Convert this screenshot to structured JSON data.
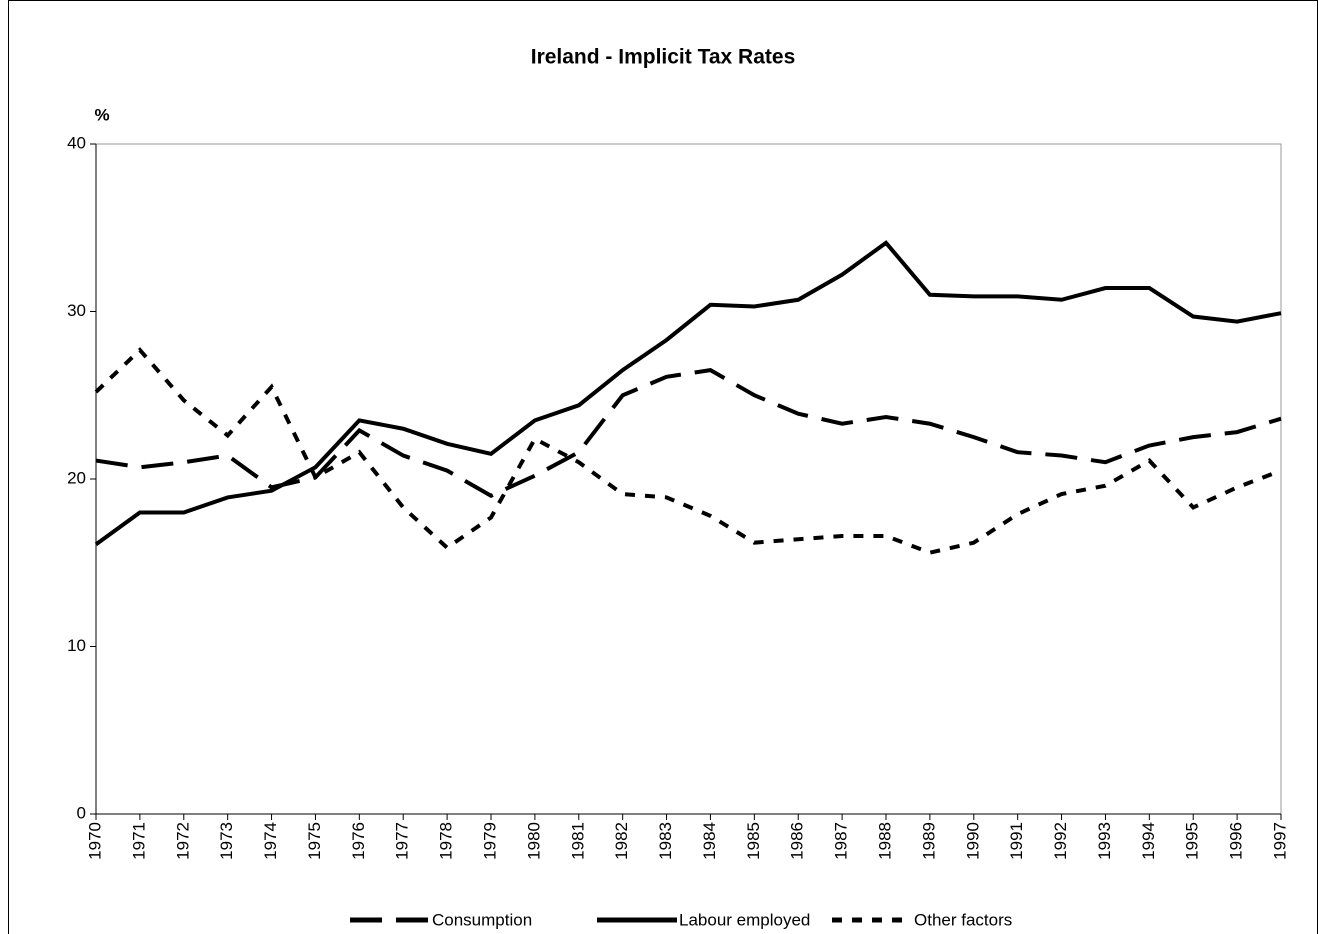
{
  "chart_data": {
    "type": "line",
    "title": "Ireland - Implicit Tax Rates",
    "y_label": "%",
    "categories": [
      "1970",
      "1971",
      "1972",
      "1973",
      "1974",
      "1975",
      "1976",
      "1977",
      "1978",
      "1979",
      "1980",
      "1981",
      "1982",
      "1983",
      "1984",
      "1985",
      "1986",
      "1987",
      "1988",
      "1989",
      "1990",
      "1991",
      "1992",
      "1993",
      "1994",
      "1995",
      "1996",
      "1997"
    ],
    "series": [
      {
        "name": "Consumption",
        "color": "#000000",
        "dash": "long",
        "values": [
          21.1,
          20.7,
          21.0,
          21.4,
          19.5,
          20.1,
          22.9,
          21.4,
          20.5,
          19.0,
          20.2,
          21.6,
          25.0,
          26.1,
          26.5,
          25.0,
          23.9,
          23.3,
          23.7,
          23.3,
          22.5,
          21.6,
          21.4,
          21.0,
          22.0,
          22.5,
          22.8,
          23.6
        ]
      },
      {
        "name": "Labour employed",
        "color": "#000000",
        "dash": "solid",
        "values": [
          16.1,
          18.0,
          18.0,
          18.9,
          19.3,
          20.7,
          23.5,
          23.0,
          22.1,
          21.5,
          23.5,
          24.4,
          26.5,
          28.3,
          30.4,
          30.3,
          30.7,
          32.2,
          34.1,
          31.0,
          30.9,
          30.9,
          30.7,
          31.4,
          31.4,
          29.7,
          29.4,
          29.9
        ]
      },
      {
        "name": "Other factors",
        "color": "#000000",
        "dash": "short",
        "values": [
          25.2,
          27.7,
          24.7,
          22.6,
          25.5,
          20.1,
          21.6,
          18.3,
          15.9,
          17.7,
          22.4,
          21.0,
          19.1,
          18.9,
          17.8,
          16.2,
          16.4,
          16.6,
          16.6,
          15.6,
          16.2,
          17.9,
          19.1,
          19.6,
          21.1,
          18.3,
          19.5,
          20.5
        ]
      }
    ],
    "ylim": [
      0,
      40
    ],
    "yticks": [
      0,
      10,
      20,
      30,
      40
    ],
    "grid": false,
    "legend": "bottom"
  }
}
